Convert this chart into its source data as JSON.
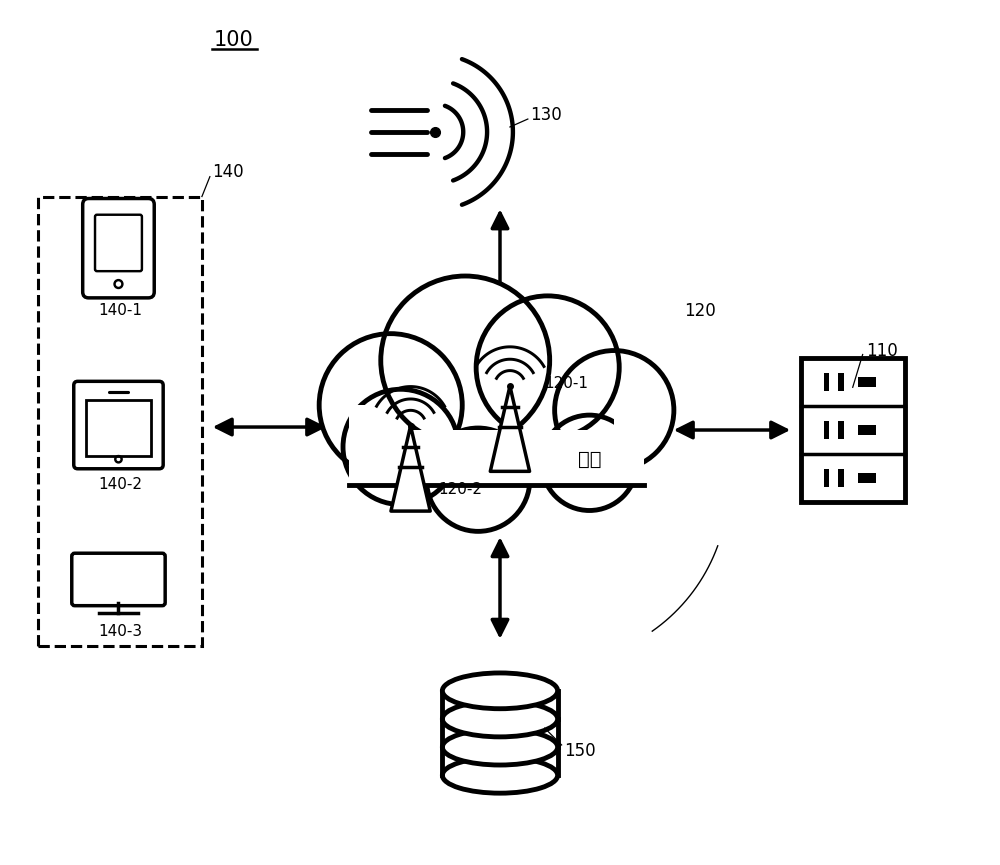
{
  "bg_color": "#ffffff",
  "label_100": "100",
  "label_110": "110",
  "label_120": "120",
  "label_120_1": "120-1",
  "label_120_2": "120-2",
  "label_130": "130",
  "label_140": "140",
  "label_140_1": "140-1",
  "label_140_2": "140-2",
  "label_140_3": "140-3",
  "label_150": "150",
  "network_text": "网络",
  "line_color": "#000000",
  "fill_color": "#ffffff"
}
